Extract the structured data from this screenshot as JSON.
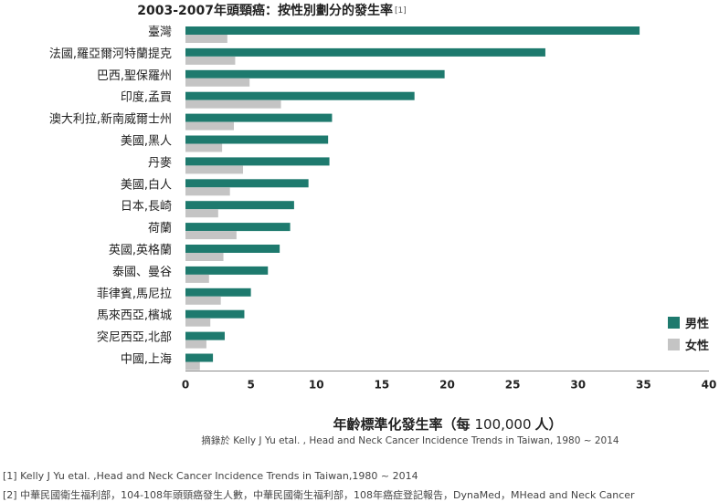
{
  "chart_data": {
    "type": "bar",
    "orientation": "horizontal",
    "title": "2003-2007年頭頸癌：按性別劃分的發生率",
    "title_ref": "[1]",
    "categories": [
      "臺灣",
      "法國,羅亞爾河特蘭提克",
      "巴西,聖保羅州",
      "印度,孟買",
      "澳大利拉,新南威爾士州",
      "美國,黑人",
      "丹麥",
      "美國,白人",
      "日本,長崎",
      "荷蘭",
      "英國,英格蘭",
      "泰國、曼谷",
      "菲律賓,馬尼拉",
      "馬來西亞,檳城",
      "突尼西亞,北部",
      "中國,上海"
    ],
    "series": [
      {
        "name": "男性",
        "color": "#1e7a6e",
        "values": [
          34.7,
          27.5,
          19.8,
          17.5,
          11.2,
          10.9,
          11.0,
          9.4,
          8.3,
          8.0,
          7.2,
          6.3,
          5.0,
          4.5,
          3.0,
          2.1
        ]
      },
      {
        "name": "女性",
        "color": "#c4c4c4",
        "values": [
          3.2,
          3.8,
          4.9,
          7.3,
          3.7,
          2.8,
          4.4,
          3.4,
          2.5,
          3.9,
          2.9,
          1.8,
          2.7,
          1.9,
          1.6,
          1.1
        ]
      }
    ],
    "xlim": [
      0,
      40
    ],
    "xticks": [
      0,
      5,
      10,
      15,
      20,
      25,
      30,
      35,
      40
    ],
    "xlabel": "年齡標準化發生率（每",
    "xlabel_num": "100,000",
    "xlabel_end": "人）",
    "source": "摘錄於 Kelly J Yu etal. , Head and Neck Cancer Incidence Trends in Taiwan, 1980 ~ 2014",
    "legend_position": "right",
    "grid": false
  },
  "footnotes": [
    "[1] Kelly J Yu etal. ,Head and Neck Cancer Incidence Trends in Taiwan,1980 ~ 2014",
    "[2] 中華民國衛生福利部，104-108年頭頸癌發生人數，中華民國衛生福利部，108年癌症登記報告，DynaMed，MHead and Neck Cancer"
  ]
}
